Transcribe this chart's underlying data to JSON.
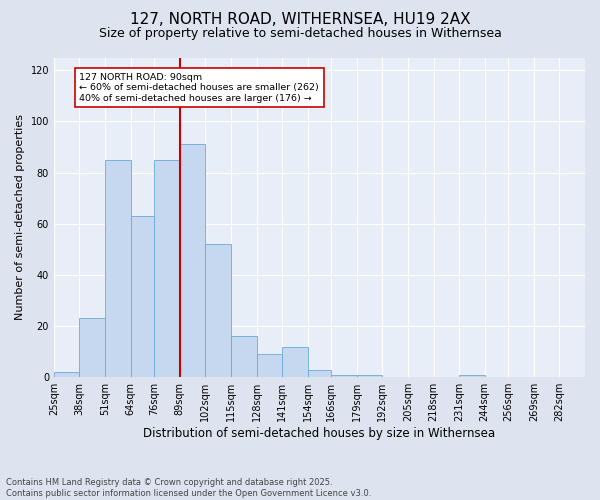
{
  "title": "127, NORTH ROAD, WITHERNSEA, HU19 2AX",
  "subtitle": "Size of property relative to semi-detached houses in Withernsea",
  "xlabel": "Distribution of semi-detached houses by size in Withernsea",
  "ylabel": "Number of semi-detached properties",
  "bins": [
    "25sqm",
    "38sqm",
    "51sqm",
    "64sqm",
    "76sqm",
    "89sqm",
    "102sqm",
    "115sqm",
    "128sqm",
    "141sqm",
    "154sqm",
    "166sqm",
    "179sqm",
    "192sqm",
    "205sqm",
    "218sqm",
    "231sqm",
    "244sqm",
    "256sqm",
    "269sqm",
    "282sqm"
  ],
  "bin_edges": [
    25,
    38,
    51,
    64,
    76,
    89,
    102,
    115,
    128,
    141,
    154,
    166,
    179,
    192,
    205,
    218,
    231,
    244,
    256,
    269,
    282
  ],
  "values": [
    2,
    23,
    85,
    63,
    85,
    91,
    52,
    16,
    9,
    12,
    3,
    1,
    1,
    0,
    0,
    0,
    1,
    0,
    0,
    0
  ],
  "bar_color": "#c5d8f0",
  "bar_edge_color": "#6aaad4",
  "vline_x": 89,
  "vline_color": "#cc0000",
  "annotation_text": "127 NORTH ROAD: 90sqm\n← 60% of semi-detached houses are smaller (262)\n40% of semi-detached houses are larger (176) →",
  "annotation_box_color": "white",
  "annotation_box_edge": "#cc0000",
  "ylim": [
    0,
    125
  ],
  "yticks": [
    0,
    20,
    40,
    60,
    80,
    100,
    120
  ],
  "footnote": "Contains HM Land Registry data © Crown copyright and database right 2025.\nContains public sector information licensed under the Open Government Licence v3.0.",
  "bg_color": "#dde4f0",
  "plot_bg_color": "#e8eef8",
  "title_fontsize": 11,
  "subtitle_fontsize": 9,
  "ylabel_fontsize": 8,
  "xlabel_fontsize": 8.5,
  "tick_fontsize": 7
}
